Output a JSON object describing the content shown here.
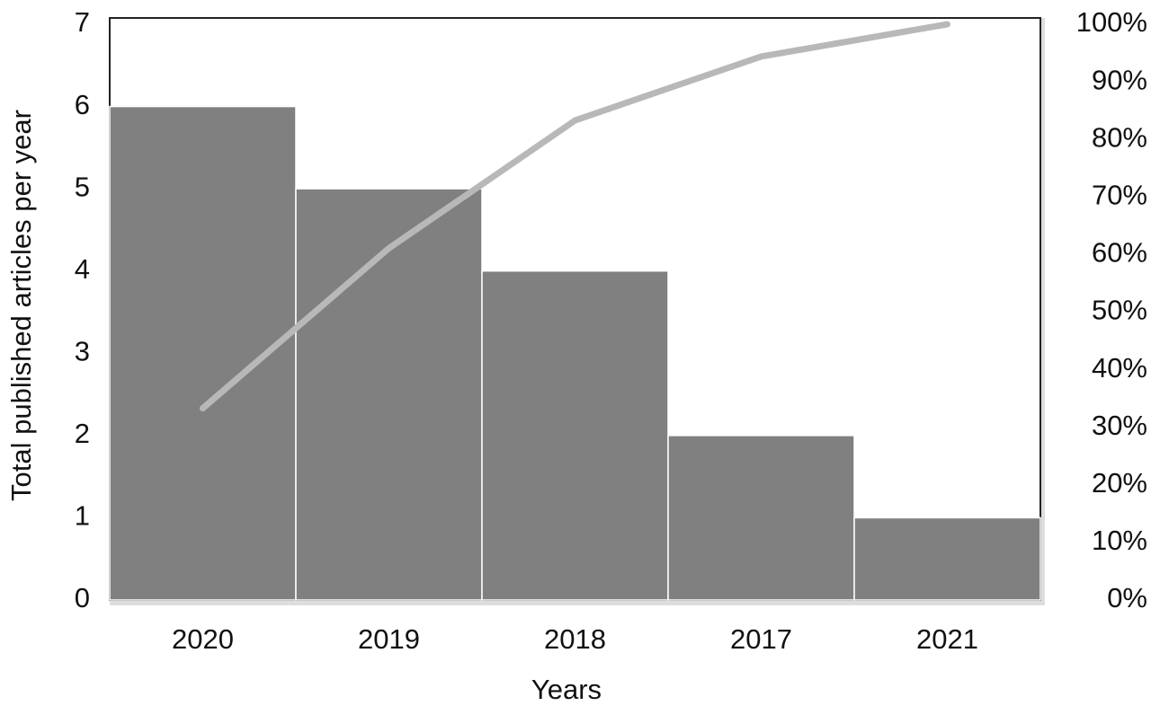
{
  "chart_data": {
    "type": "bar",
    "x_label": "Years",
    "y_label": "Total published articles per year",
    "categories": [
      "2020",
      "2019",
      "2018",
      "2017",
      "2021"
    ],
    "series": [
      {
        "type": "bar",
        "color": "#808080",
        "values": [
          6,
          5,
          4,
          2,
          1
        ]
      },
      {
        "type": "line",
        "axis": "y2",
        "color": "#b8b8b8",
        "values": [
          33.3,
          61.1,
          83.3,
          94.4,
          100
        ]
      }
    ],
    "ylim": [
      0,
      7
    ],
    "yticks": [
      0,
      1,
      2,
      3,
      4,
      5,
      6,
      7
    ],
    "y2lim": [
      0,
      100
    ],
    "y2ticks": [
      {
        "value": 0,
        "label": "0%"
      },
      {
        "value": 10,
        "label": "10%"
      },
      {
        "value": 20,
        "label": "20%"
      },
      {
        "value": 30,
        "label": "30%"
      },
      {
        "value": 40,
        "label": "40%"
      },
      {
        "value": 50,
        "label": "50%"
      },
      {
        "value": 60,
        "label": "60%"
      },
      {
        "value": 70,
        "label": "70%"
      },
      {
        "value": 80,
        "label": "80%"
      },
      {
        "value": 90,
        "label": "90%"
      },
      {
        "value": 100,
        "label": "100%"
      }
    ]
  }
}
